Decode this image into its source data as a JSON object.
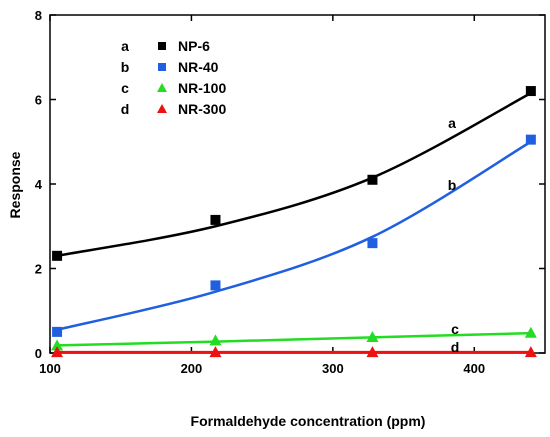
{
  "chart_data": {
    "type": "scatter",
    "xlabel": "Formaldehyde concentration (ppm)",
    "ylabel": "Response",
    "xlim": [
      100,
      450
    ],
    "ylim": [
      0,
      8
    ],
    "x_ticks": [
      "100",
      "200",
      "300",
      "400"
    ],
    "y_ticks": [
      "0",
      "2",
      "4",
      "6",
      "8"
    ],
    "grid": false,
    "legend_position": "top-left",
    "x": [
      105,
      217,
      328,
      440
    ],
    "series": [
      {
        "name": "NP-6",
        "key": "a",
        "marker": "square",
        "color": "#000000",
        "values": [
          2.3,
          3.15,
          4.1,
          6.2
        ],
        "fit": [
          2.3,
          3.0,
          4.15,
          6.15
        ]
      },
      {
        "name": "NR-40",
        "key": "b",
        "marker": "square",
        "color": "#1f5fe0",
        "values": [
          0.5,
          1.6,
          2.6,
          5.05
        ],
        "fit": [
          0.55,
          1.45,
          2.75,
          5.0
        ]
      },
      {
        "name": "NR-100",
        "key": "c",
        "marker": "triangle",
        "color": "#22dd22",
        "values": [
          0.18,
          0.3,
          0.38,
          0.48
        ],
        "fit": [
          0.18,
          0.27,
          0.37,
          0.47
        ]
      },
      {
        "name": "NR-300",
        "key": "d",
        "marker": "triangle",
        "color": "#ee1111",
        "values": [
          0.02,
          0.02,
          0.02,
          0.02
        ],
        "fit": [
          0.02,
          0.02,
          0.02,
          0.02
        ]
      }
    ]
  }
}
